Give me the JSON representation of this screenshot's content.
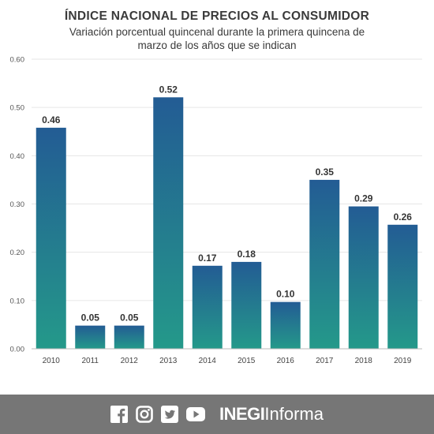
{
  "header": {
    "title": "ÍNDICE NACIONAL DE PRECIOS AL CONSUMIDOR",
    "subtitle_line1": "Variación porcentual quincenal durante la primera quincena de",
    "subtitle_line2": "marzo de los años que se indican"
  },
  "chart_data": {
    "type": "bar",
    "categories": [
      "2010",
      "2011",
      "2012",
      "2013",
      "2014",
      "2015",
      "2016",
      "2017",
      "2018",
      "2019"
    ],
    "values": [
      0.458,
      0.048,
      0.048,
      0.521,
      0.172,
      0.18,
      0.097,
      0.35,
      0.295,
      0.257
    ],
    "data_labels": [
      "0.46",
      "0.05",
      "0.05",
      "0.52",
      "0.17",
      "0.18",
      "0.10",
      "0.35",
      "0.29",
      "0.26"
    ],
    "ylim": [
      0,
      0.6
    ],
    "yticks": [
      "0.00",
      "0.10",
      "0.20",
      "0.30",
      "0.40",
      "0.50",
      "0.60"
    ],
    "grid": true,
    "colors": {
      "bar_top": "#235c94",
      "bar_bottom": "#24998a",
      "grid": "#e6e6e6",
      "text": "#333333"
    }
  },
  "footer": {
    "icons": [
      "facebook-icon",
      "instagram-icon",
      "twitter-icon",
      "youtube-icon"
    ],
    "brand_bold": "INEGI",
    "brand_light": "Informa",
    "background": "#767676"
  }
}
